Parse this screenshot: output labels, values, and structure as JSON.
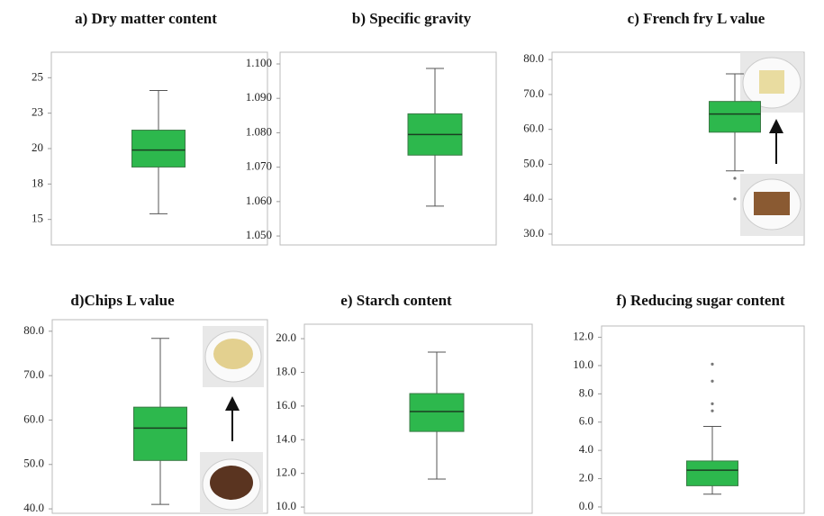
{
  "chart_data": [
    {
      "type": "box",
      "title": "a) Dry matter content",
      "color": "#2db84d",
      "ylim": [
        13.2,
        26.8
      ],
      "yticks": [
        15,
        {
          "value": 17.5,
          "label": "18"
        },
        20,
        {
          "value": 22.5,
          "label": "23"
        },
        25
      ],
      "box": {
        "whislo": 15.4,
        "q1": 18.7,
        "med": 19.9,
        "q3": 21.3,
        "whishi": 24.1,
        "fliers": []
      }
    },
    {
      "type": "box",
      "title": "b) Specific gravity",
      "color": "#2db84d",
      "ylim": [
        1.0474,
        1.1034
      ],
      "yticks": [
        {
          "value": 1.05,
          "label": "1.050"
        },
        {
          "value": 1.06,
          "label": "1.060"
        },
        {
          "value": 1.07,
          "label": "1.070"
        },
        {
          "value": 1.08,
          "label": "1.080"
        },
        {
          "value": 1.09,
          "label": "1.090"
        },
        {
          "value": 1.1,
          "label": "1.100"
        }
      ],
      "box": {
        "whislo": 1.0587,
        "q1": 1.0735,
        "med": 1.0795,
        "q3": 1.0855,
        "whishi": 1.0987,
        "fliers": []
      }
    },
    {
      "type": "box",
      "title": "c) French fry L value",
      "color": "#2db84d",
      "ylim": [
        26.9,
        82.1
      ],
      "yticks": [
        {
          "value": 30,
          "label": "30.0"
        },
        {
          "value": 40,
          "label": "40.0"
        },
        {
          "value": 50,
          "label": "50.0"
        },
        {
          "value": 60,
          "label": "60.0"
        },
        {
          "value": 70,
          "label": "70.0"
        },
        {
          "value": 80,
          "label": "80.0"
        }
      ],
      "box": {
        "whislo": 48.1,
        "q1": 59.2,
        "med": 64.4,
        "q3": 68.0,
        "whishi": 75.9,
        "fliers": [
          46.0,
          40.1
        ]
      }
    },
    {
      "type": "box",
      "title": "d)Chips L value",
      "color": "#2db84d",
      "ylim": [
        39.0,
        82.6
      ],
      "yticks": [
        {
          "value": 40,
          "label": "40.0"
        },
        {
          "value": 50,
          "label": "50.0"
        },
        {
          "value": 60,
          "label": "60.0"
        },
        {
          "value": 70,
          "label": "70.0"
        },
        {
          "value": 80,
          "label": "80.0"
        }
      ],
      "box": {
        "whislo": 41.0,
        "q1": 50.9,
        "med": 58.2,
        "q3": 62.9,
        "whishi": 78.4,
        "fliers": []
      }
    },
    {
      "type": "box",
      "title": "e) Starch content",
      "color": "#2db84d",
      "ylim": [
        9.63,
        20.86
      ],
      "yticks": [
        {
          "value": 10,
          "label": "10.0"
        },
        {
          "value": 12,
          "label": "12.0"
        },
        {
          "value": 14,
          "label": "14.0"
        },
        {
          "value": 16,
          "label": "16.0"
        },
        {
          "value": 18,
          "label": "18.0"
        },
        {
          "value": 20,
          "label": "20.0"
        }
      ],
      "box": {
        "whislo": 11.66,
        "q1": 14.49,
        "med": 15.67,
        "q3": 16.74,
        "whishi": 19.2,
        "fliers": []
      }
    },
    {
      "type": "box",
      "title": "f) Reducing sugar content",
      "color": "#2db84d",
      "ylim": [
        -0.45,
        12.8
      ],
      "yticks": [
        {
          "value": 0,
          "label": "0.0"
        },
        {
          "value": 2,
          "label": "2.0"
        },
        {
          "value": 4,
          "label": "4.0"
        },
        {
          "value": 6,
          "label": "6.0"
        },
        {
          "value": 8,
          "label": "8.0"
        },
        {
          "value": 10,
          "label": "10.0"
        },
        {
          "value": 12,
          "label": "12.0"
        }
      ],
      "box": {
        "whislo": 0.9,
        "q1": 1.5,
        "med": 2.6,
        "q3": 3.25,
        "whishi": 5.7,
        "fliers": [
          10.1,
          8.9,
          7.3,
          6.8
        ]
      }
    }
  ]
}
